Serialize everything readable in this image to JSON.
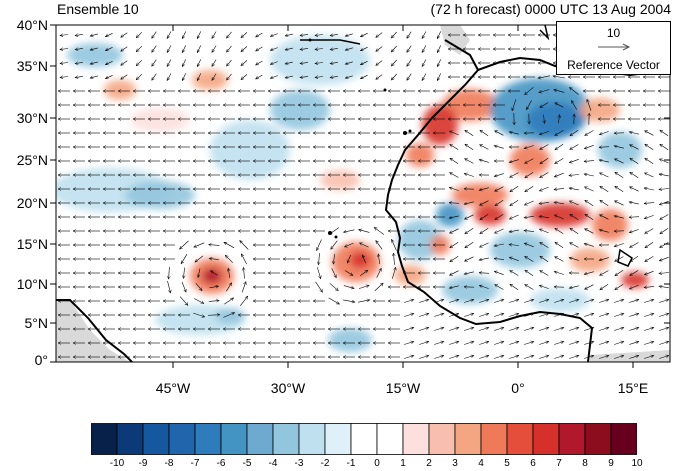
{
  "header": {
    "left_title": "Ensemble 10",
    "right_title": "(72 h forecast) 0000 UTC 13 Aug 2004"
  },
  "axes": {
    "lat_labels": [
      "40°N",
      "35°N",
      "30°N",
      "25°N",
      "20°N",
      "15°N",
      "10°N",
      "5°N",
      "0°"
    ],
    "lon_labels": [
      "45°W",
      "30°W",
      "15°W",
      "0°",
      "15°E"
    ]
  },
  "reference_vector": {
    "magnitude": "10",
    "label": "Reference Vector"
  },
  "colorbar": {
    "labels": [
      "-10",
      "-9",
      "-8",
      "-7",
      "-6",
      "-5",
      "-4",
      "-3",
      "-2",
      "-1",
      "0",
      "1",
      "2",
      "3",
      "4",
      "5",
      "6",
      "7",
      "8",
      "9",
      "10"
    ],
    "colors": [
      "#08214a",
      "#0c3a78",
      "#15589f",
      "#2166ac",
      "#2f7cbd",
      "#4393c3",
      "#6ea9cf",
      "#92c5de",
      "#bfe0ee",
      "#dff0f8",
      "#ffffff",
      "#ffffff",
      "#fde0dd",
      "#f8bfae",
      "#f4a582",
      "#ef7a5a",
      "#e44e3a",
      "#d6302a",
      "#b2182b",
      "#8c0d1e",
      "#67001f"
    ]
  },
  "colors": {
    "land_boundary": "#000000",
    "missing_data": "#d9d9d9",
    "vectors": "#000000"
  }
}
